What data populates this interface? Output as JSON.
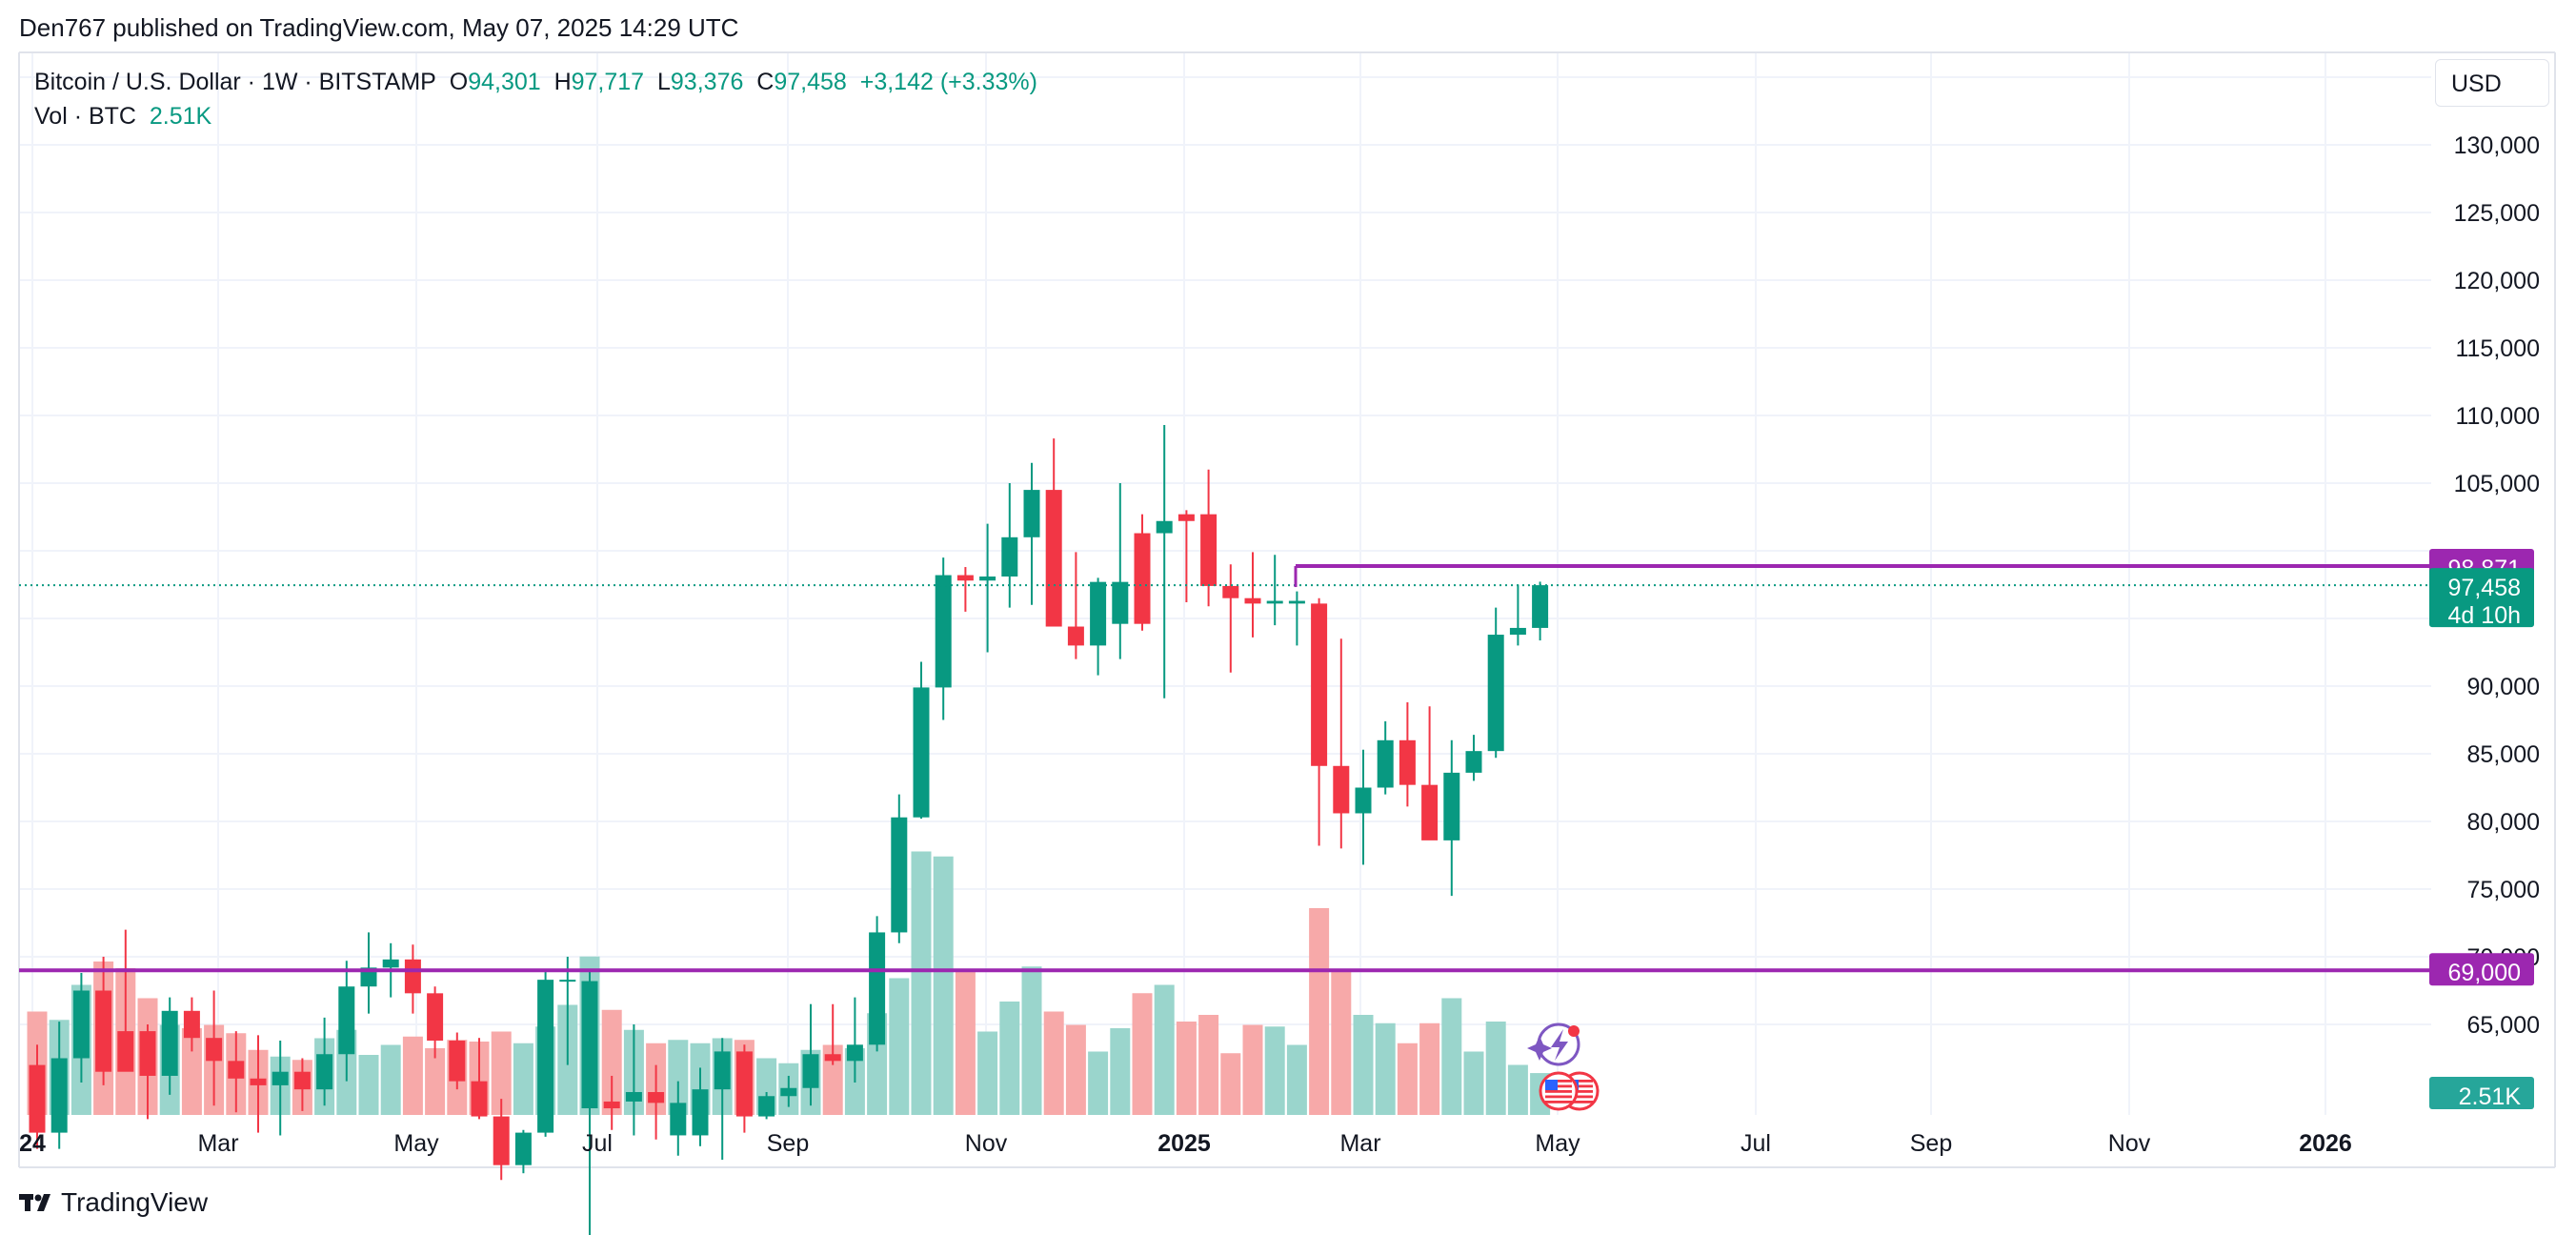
{
  "published": "Den767 published on TradingView.com, May 07, 2025 14:29 UTC",
  "legend": {
    "symbol": "Bitcoin / U.S. Dollar · 1W · BITSTAMP",
    "o_label": "O",
    "o": "94,301",
    "h_label": "H",
    "h": "97,717",
    "l_label": "L",
    "l": "93,376",
    "c_label": "C",
    "c": "97,458",
    "change": "+3,142 (+3.33%)",
    "vol_label": "Vol · BTC",
    "vol": "2.51K"
  },
  "currency": "USD",
  "footer": {
    "brand": "TradingView"
  },
  "colors": {
    "up": "#089981",
    "down": "#f23645",
    "upVol": "#9ad5cc",
    "downVol": "#f7a9a9",
    "level": "#9c27b0",
    "grid": "#f0f3fa"
  },
  "chart_data": {
    "type": "candlestick",
    "y_ticks": [
      "130,000",
      "125,000",
      "120,000",
      "115,000",
      "110,000",
      "105,000",
      "90,000",
      "85,000",
      "80,000",
      "75,000",
      "70,000",
      "65,000"
    ],
    "x_ticks": [
      {
        "label": "24",
        "bold": true
      },
      {
        "label": "Mar",
        "bold": false
      },
      {
        "label": "May",
        "bold": false
      },
      {
        "label": "Jul",
        "bold": false
      },
      {
        "label": "Sep",
        "bold": false
      },
      {
        "label": "Nov",
        "bold": false
      },
      {
        "label": "2025",
        "bold": true
      },
      {
        "label": "Mar",
        "bold": false
      },
      {
        "label": "May",
        "bold": false
      },
      {
        "label": "Jul",
        "bold": false
      },
      {
        "label": "Sep",
        "bold": false
      },
      {
        "label": "Nov",
        "bold": false
      },
      {
        "label": "2026",
        "bold": true
      }
    ],
    "price_labels": {
      "resistance": "98,871",
      "current": "97,458",
      "countdown": "4d 10h",
      "support": "69,000",
      "volume": "2.51K"
    },
    "levels": {
      "resistance": 98871,
      "support": 69000,
      "current": 97458
    },
    "candles": [
      [
        1,
        62000,
        63500,
        55800,
        57000,
        6.2
      ],
      [
        0,
        57000,
        65200,
        55800,
        62500,
        5.7
      ],
      [
        0,
        62500,
        68800,
        60700,
        67500,
        7.8
      ],
      [
        1,
        67500,
        70000,
        60500,
        61500,
        9.2
      ],
      [
        1,
        61500,
        72000,
        62000,
        64500,
        8.8
      ],
      [
        1,
        64500,
        65000,
        58000,
        61200,
        7.0
      ],
      [
        0,
        61200,
        67000,
        59800,
        66000,
        5.4
      ],
      [
        1,
        66000,
        67000,
        63000,
        64000,
        5.2
      ],
      [
        1,
        64000,
        67500,
        59000,
        62300,
        5.4
      ],
      [
        1,
        62300,
        64500,
        58500,
        61000,
        4.9
      ],
      [
        1,
        61000,
        64200,
        57000,
        60500,
        3.9
      ],
      [
        0,
        60500,
        63800,
        56800,
        61500,
        3.5
      ],
      [
        1,
        61500,
        62500,
        58600,
        60200,
        3.3
      ],
      [
        0,
        60200,
        65500,
        59000,
        62800,
        4.6
      ],
      [
        0,
        62800,
        69700,
        60800,
        67800,
        5.1
      ],
      [
        0,
        67800,
        71800,
        65800,
        69200,
        3.6
      ],
      [
        0,
        69200,
        71000,
        67000,
        69800,
        4.2
      ],
      [
        1,
        69800,
        70900,
        65800,
        67300,
        4.7
      ],
      [
        1,
        67300,
        67800,
        62500,
        63800,
        4.0
      ],
      [
        1,
        63800,
        64400,
        60200,
        60800,
        4.5
      ],
      [
        1,
        60800,
        64000,
        58000,
        58200,
        4.4
      ],
      [
        1,
        58200,
        59500,
        53500,
        54600,
        5.0
      ],
      [
        0,
        54600,
        57200,
        54000,
        57000,
        4.3
      ],
      [
        0,
        57000,
        69000,
        56700,
        68300,
        5.3
      ],
      [
        0,
        68300,
        70000,
        62000,
        68200,
        6.6
      ],
      [
        0,
        68200,
        69000,
        49000,
        58800,
        9.5
      ],
      [
        1,
        58800,
        61200,
        57200,
        59300,
        6.3
      ],
      [
        0,
        59300,
        65000,
        56800,
        60000,
        5.1
      ],
      [
        1,
        60000,
        62000,
        56500,
        59200,
        4.3
      ],
      [
        0,
        59200,
        60800,
        55300,
        56800,
        4.5
      ],
      [
        0,
        56800,
        61800,
        56000,
        60200,
        4.3
      ],
      [
        0,
        60200,
        64000,
        55000,
        63000,
        4.6
      ],
      [
        1,
        63000,
        63500,
        57000,
        58200,
        4.5
      ],
      [
        0,
        58200,
        60000,
        58000,
        59700,
        3.4
      ],
      [
        0,
        59700,
        61200,
        58900,
        60300,
        3.1
      ],
      [
        0,
        60300,
        66500,
        59000,
        62800,
        3.9
      ],
      [
        1,
        62800,
        66500,
        62000,
        62300,
        4.2
      ],
      [
        0,
        62300,
        67000,
        60700,
        63500,
        4.0
      ],
      [
        0,
        63500,
        73000,
        63000,
        71800,
        6.1
      ],
      [
        0,
        71800,
        82000,
        71000,
        80300,
        8.2
      ],
      [
        0,
        80300,
        91800,
        80200,
        89900,
        15.8
      ],
      [
        0,
        89900,
        99500,
        87500,
        98200,
        15.5
      ],
      [
        1,
        98200,
        98800,
        95500,
        97800,
        8.6
      ],
      [
        0,
        97800,
        102000,
        92500,
        98100,
        5.0
      ],
      [
        0,
        98100,
        105000,
        95800,
        101000,
        6.8
      ],
      [
        0,
        101000,
        106500,
        96000,
        104500,
        8.9
      ],
      [
        1,
        104500,
        108300,
        95000,
        94400,
        6.2
      ],
      [
        1,
        94400,
        99900,
        92000,
        93000,
        5.4
      ],
      [
        0,
        93000,
        98000,
        90800,
        97700,
        3.8
      ],
      [
        0,
        97700,
        105000,
        92000,
        94600,
        5.2
      ],
      [
        1,
        94600,
        102700,
        94100,
        101300,
        7.3
      ],
      [
        0,
        101300,
        109300,
        89100,
        102200,
        7.8
      ],
      [
        1,
        102200,
        103000,
        96200,
        102700,
        5.6
      ],
      [
        1,
        102700,
        106000,
        95900,
        97400,
        6.0
      ],
      [
        1,
        97400,
        99000,
        91000,
        96500,
        3.7
      ],
      [
        1,
        96500,
        99900,
        93600,
        96100,
        5.4
      ],
      [
        0,
        96100,
        99700,
        94500,
        96300,
        5.3
      ],
      [
        0,
        96300,
        97000,
        93000,
        96100,
        4.2
      ],
      [
        1,
        96100,
        96500,
        78200,
        84100,
        12.4
      ],
      [
        1,
        84100,
        93500,
        78000,
        80600,
        8.7
      ],
      [
        0,
        80600,
        85300,
        76800,
        82500,
        6.0
      ],
      [
        0,
        82500,
        87400,
        82000,
        86000,
        5.5
      ],
      [
        1,
        86000,
        88800,
        81100,
        82700,
        4.3
      ],
      [
        1,
        82700,
        88500,
        78700,
        78600,
        5.5
      ],
      [
        0,
        78600,
        86000,
        74500,
        83600,
        7.0
      ],
      [
        0,
        83600,
        86400,
        83000,
        85200,
        3.8
      ],
      [
        0,
        85200,
        95800,
        84700,
        93800,
        5.6
      ],
      [
        0,
        93800,
        97500,
        93000,
        94300,
        3.0
      ],
      [
        0,
        94301,
        97717,
        93376,
        97458,
        2.51
      ]
    ]
  }
}
